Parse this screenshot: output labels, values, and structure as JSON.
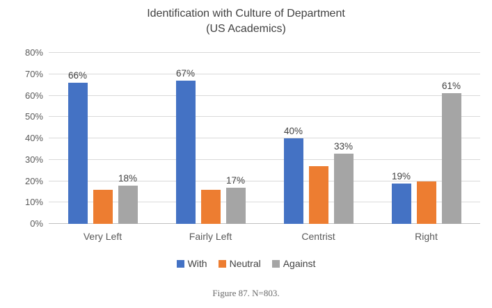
{
  "title": {
    "line1": "Identification with Culture of Department",
    "line2": "(US Academics)"
  },
  "caption": "Figure 87. N=803.",
  "colors": {
    "with": "#4472C4",
    "neutral": "#ED7D31",
    "against": "#A5A5A5",
    "gridline": "#D9D9D9",
    "axis_text": "#595959",
    "label_text": "#404040"
  },
  "chart_data": {
    "type": "bar",
    "title": "Identification with Culture of Department (US Academics)",
    "categories": [
      "Very Left",
      "Fairly Left",
      "Centrist",
      "Right"
    ],
    "series": [
      {
        "name": "With",
        "color": "#4472C4",
        "values": [
          66,
          67,
          40,
          19
        ],
        "labels": [
          "66%",
          "67%",
          "40%",
          "19%"
        ]
      },
      {
        "name": "Neutral",
        "color": "#ED7D31",
        "values": [
          16,
          16,
          27,
          20
        ],
        "labels": [
          "",
          "",
          "",
          ""
        ]
      },
      {
        "name": "Against",
        "color": "#A5A5A5",
        "values": [
          18,
          17,
          33,
          61
        ],
        "labels": [
          "18%",
          "17%",
          "33%",
          "61%"
        ]
      }
    ],
    "ylim": [
      0,
      80
    ],
    "ytick_step": 10,
    "ytick_labels": [
      "0%",
      "10%",
      "20%",
      "30%",
      "40%",
      "50%",
      "60%",
      "70%",
      "80%"
    ],
    "grid": true,
    "legend": [
      "With",
      "Neutral",
      "Against"
    ],
    "legend_position": "bottom"
  }
}
